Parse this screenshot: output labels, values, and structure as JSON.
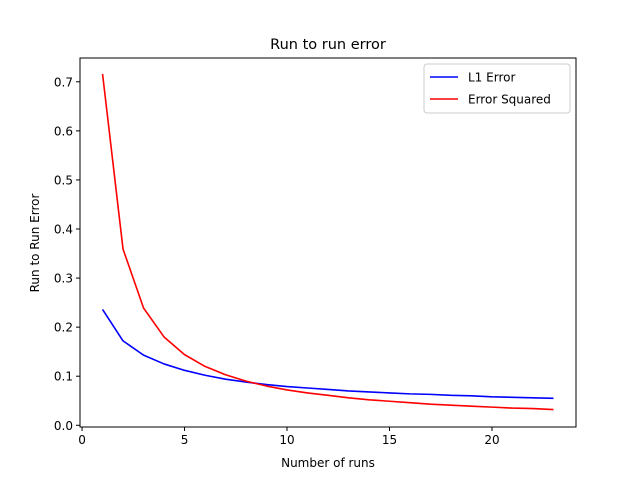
{
  "chart_data": {
    "type": "line",
    "title": "Run to run error",
    "xlabel": "Number of runs",
    "ylabel": "Run to Run Error",
    "xlim": [
      -0.1,
      24.1
    ],
    "ylim": [
      -0.0035,
      0.7485
    ],
    "xticks": [
      0,
      5,
      10,
      15,
      20
    ],
    "yticks": [
      0.0,
      0.1,
      0.2,
      0.3,
      0.4,
      0.5,
      0.6,
      0.7
    ],
    "grid": false,
    "legend_position": "top-right",
    "x": [
      1,
      2,
      3,
      4,
      5,
      6,
      7,
      8,
      9,
      10,
      11,
      12,
      13,
      14,
      15,
      16,
      17,
      18,
      19,
      20,
      21,
      22,
      23
    ],
    "series": [
      {
        "name": "L1 Error",
        "color": "#0000ff",
        "values": [
          0.236,
          0.172,
          0.143,
          0.125,
          0.112,
          0.102,
          0.094,
          0.088,
          0.083,
          0.079,
          0.076,
          0.073,
          0.07,
          0.068,
          0.066,
          0.064,
          0.063,
          0.061,
          0.06,
          0.058,
          0.057,
          0.056,
          0.055
        ]
      },
      {
        "name": "Error Squared",
        "color": "#ff0000",
        "values": [
          0.716,
          0.359,
          0.239,
          0.18,
          0.144,
          0.12,
          0.103,
          0.09,
          0.08,
          0.072,
          0.066,
          0.061,
          0.056,
          0.052,
          0.049,
          0.046,
          0.043,
          0.041,
          0.039,
          0.037,
          0.035,
          0.034,
          0.032
        ]
      }
    ]
  }
}
